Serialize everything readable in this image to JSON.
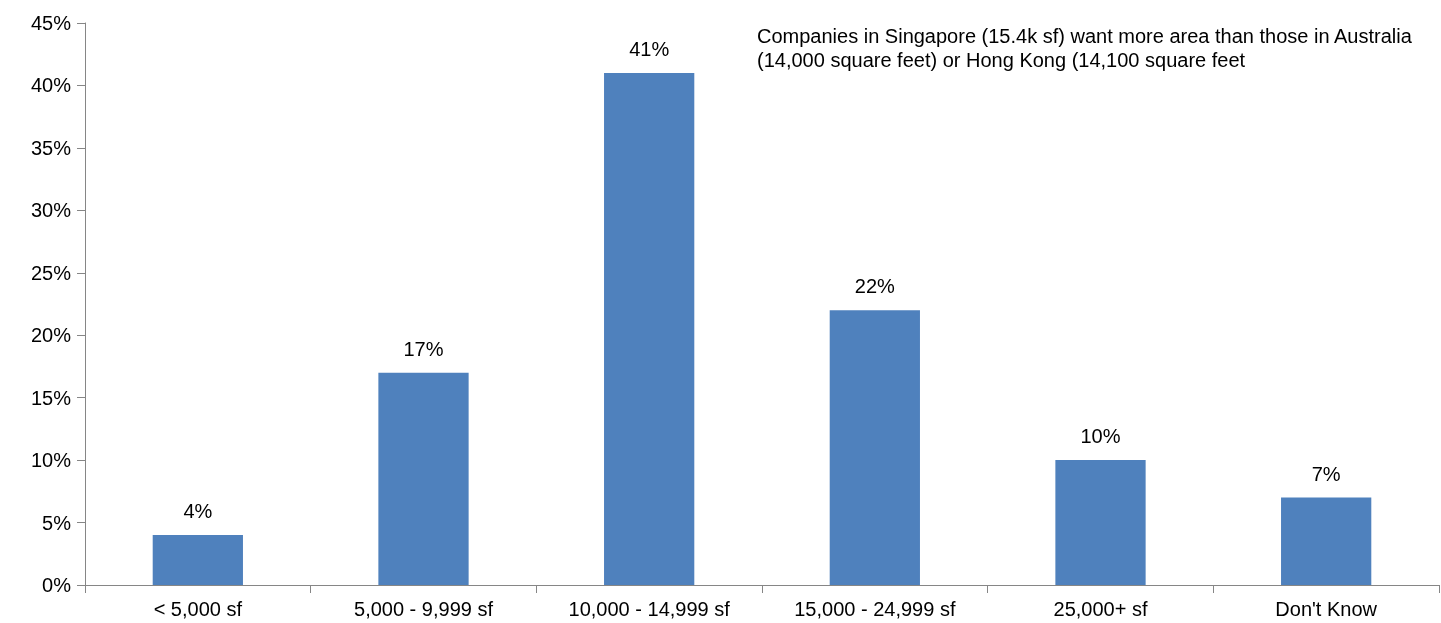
{
  "chart_data": {
    "type": "bar",
    "categories": [
      "< 5,000 sf",
      "5,000 - 9,999 sf",
      "10,000 - 14,999 sf",
      "15,000 - 24,999 sf",
      "25,000+ sf",
      "Don't Know"
    ],
    "values": [
      4,
      17,
      41,
      22,
      10,
      7
    ],
    "color": "#4f81bd",
    "ylim": [
      0,
      45
    ],
    "yticks": [
      {
        "value": 0,
        "label": "0%"
      },
      {
        "value": 5,
        "label": "5%"
      },
      {
        "value": 10,
        "label": "10%"
      },
      {
        "value": 15,
        "label": "15%"
      },
      {
        "value": 20,
        "label": "20%"
      },
      {
        "value": 25,
        "label": "25%"
      },
      {
        "value": 30,
        "label": "30%"
      },
      {
        "value": 35,
        "label": "35%"
      },
      {
        "value": 40,
        "label": "40%"
      },
      {
        "value": 45,
        "label": "45%"
      }
    ],
    "value_labels": [
      "4%",
      "17%",
      "41%",
      "22%",
      "10%",
      "7%"
    ],
    "annotations": [
      "Companies in Singapore (15.4k sf) want more area than those in Australia (14,000 square feet) or Hong Kong (14,100 square feet"
    ],
    "grid": false
  }
}
